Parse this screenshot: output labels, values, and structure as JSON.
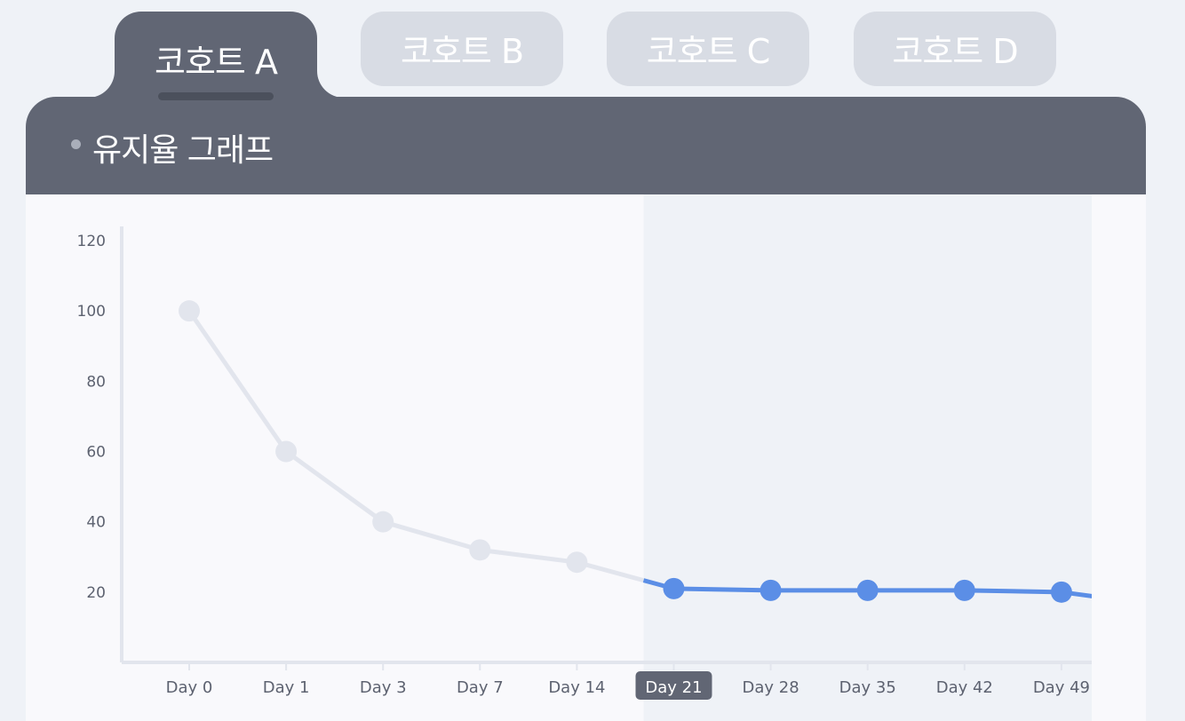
{
  "tabs": [
    {
      "label": "코호트 A",
      "active": true
    },
    {
      "label": "코호트 B",
      "active": false
    },
    {
      "label": "코호트 C",
      "active": false
    },
    {
      "label": "코호트 D",
      "active": false
    }
  ],
  "panel": {
    "title": "유지율 그래프"
  },
  "colors": {
    "panel": "#616674",
    "highlight_line": "#5b8ee6",
    "muted_line": "#e2e5ed",
    "highlight_band": "#eff2f7",
    "selected_tick_bg": "#616674"
  },
  "chart_data": {
    "type": "line",
    "x": [
      "Day 0",
      "Day 1",
      "Day 3",
      "Day 7",
      "Day 14",
      "Day 21",
      "Day 28",
      "Day 35",
      "Day 42",
      "Day 49"
    ],
    "series": [
      {
        "values": [
          100,
          60,
          40,
          32,
          28.5,
          21,
          20.5,
          20.5,
          20.5,
          20
        ]
      }
    ],
    "highlight_from": "Day 21",
    "selected_x": "Day 21",
    "ylim": [
      0,
      120
    ],
    "yticks": [
      20,
      40,
      60,
      80,
      100,
      120
    ],
    "title": "",
    "xlabel": "",
    "ylabel": "",
    "grid": false
  }
}
